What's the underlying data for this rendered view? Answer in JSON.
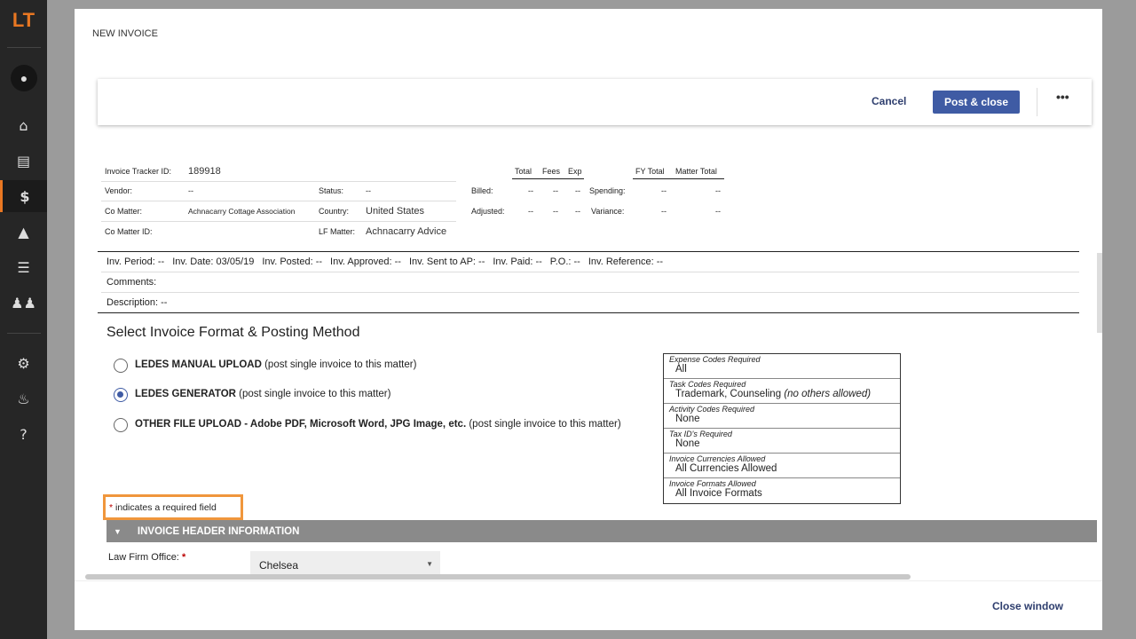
{
  "sidebar": {
    "logo": "LT",
    "items": [
      {
        "icon": "home-icon"
      },
      {
        "icon": "document-icon"
      },
      {
        "icon": "dollar-icon",
        "active": true
      },
      {
        "icon": "book-reader-icon"
      },
      {
        "icon": "list-icon"
      },
      {
        "icon": "users-icon"
      },
      {
        "icon": "gear-icon"
      },
      {
        "icon": "bell-icon"
      },
      {
        "icon": "help-icon"
      }
    ]
  },
  "modal": {
    "title": "NEW INVOICE",
    "cancel": "Cancel",
    "post_close": "Post & close",
    "more": "•••",
    "close_window": "Close window"
  },
  "info": {
    "tracker_label": "Invoice Tracker ID:",
    "tracker_value": "189918",
    "vendor_label": "Vendor:",
    "vendor_value": "--",
    "status_label": "Status:",
    "status_value": "--",
    "comatter_label": "Co Matter:",
    "comatter_value": "Achnacarry Cottage Association",
    "country_label": "Country:",
    "country_value": "United States",
    "comatterid_label": "Co Matter ID:",
    "lfmatter_label": "LF Matter:",
    "lfmatter_value": "Achnacarry Advice"
  },
  "totals": {
    "headers": [
      "Total",
      "Fees",
      "Exp"
    ],
    "rows": [
      {
        "label": "Billed:",
        "values": [
          "--",
          "--",
          "--"
        ]
      },
      {
        "label": "Adjusted:",
        "values": [
          "--",
          "--",
          "--"
        ]
      }
    ],
    "fy_headers": [
      "FY Total",
      "Matter Total"
    ],
    "fy_rows": [
      {
        "label": "Spending:",
        "values": [
          "--",
          "--"
        ]
      },
      {
        "label": "Variance:",
        "values": [
          "--",
          "--"
        ]
      }
    ]
  },
  "period": {
    "line": [
      {
        "label": "Inv. Period:",
        "value": "--"
      },
      {
        "label": "Inv. Date:",
        "value": "03/05/19"
      },
      {
        "label": "Inv. Posted:",
        "value": "--"
      },
      {
        "label": "Inv. Approved:",
        "value": "--"
      },
      {
        "label": "Inv. Sent to AP:",
        "value": "--"
      },
      {
        "label": "Inv. Paid:",
        "value": "--"
      },
      {
        "label": "P.O.:",
        "value": "--"
      },
      {
        "label": "Inv. Reference:",
        "value": "--"
      }
    ],
    "comments_label": "Comments:",
    "description_label": "Description:",
    "description_value": "--"
  },
  "format": {
    "heading": "Select Invoice Format & Posting Method",
    "options": [
      {
        "bold": "LEDES MANUAL UPLOAD",
        "rest": " (post single invoice to this matter)",
        "selected": false
      },
      {
        "bold": "LEDES GENERATOR",
        "rest": " (post single invoice to this matter)",
        "selected": true
      },
      {
        "bold": "OTHER FILE UPLOAD - Adobe PDF, Microsoft Word, JPG Image, etc.",
        "rest": " (post single invoice to this matter)",
        "selected": false
      }
    ]
  },
  "codes": [
    {
      "h": "Expense Codes Required",
      "v": "All"
    },
    {
      "h": "Task Codes Required",
      "v": "Trademark, Counseling",
      "note": "(no others allowed)"
    },
    {
      "h": "Activity Codes Required",
      "v": "None"
    },
    {
      "h": "Tax ID's Required",
      "v": "None"
    },
    {
      "h": "Invoice Currencies Allowed",
      "v": "All Currencies Allowed"
    },
    {
      "h": "Invoice Formats Allowed",
      "v": "All Invoice Formats"
    }
  ],
  "required_note": {
    "star": "*",
    "text": "indicates a required field"
  },
  "section": {
    "title": "INVOICE HEADER INFORMATION"
  },
  "law_firm_office": {
    "label": "Law Firm Office:",
    "star": "*",
    "value": "Chelsea"
  },
  "colors": {
    "accent": "#e87722",
    "primary": "#3f5ba4",
    "link": "#2e3e6e",
    "highlight": "#f0963c"
  }
}
